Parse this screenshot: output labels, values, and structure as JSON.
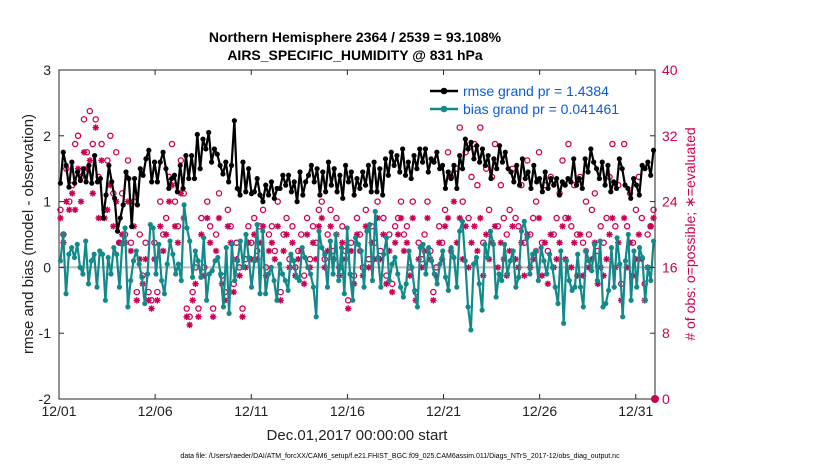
{
  "chart_data": {
    "type": "line",
    "title": "Northern Hemisphere 2364 / 2539 = 93.108%",
    "subtitle": "AIRS_SPECIFIC_HUMIDITY @ 831 hPa",
    "xlabel": "Dec.01,2017 00:00:00 start",
    "ylabel": "rmse and bias (model - observation)",
    "y2label": "# of obs: o=possible; ∗=evaluated",
    "footnote": "data file: /Users/raeder/DAI/ATM_forcXX/CAM6_setup/f.e21.FHIST_BGC.f09_025.CAM6assim.011/Diags_NTrS_2017-12/obs_diag_output.nc",
    "xlim": [
      0,
      31
    ],
    "ylim": [
      -2,
      3
    ],
    "y2lim": [
      0,
      40
    ],
    "xticks": [
      0,
      5,
      10,
      15,
      20,
      25,
      30
    ],
    "xticklabels": [
      "12/01",
      "12/06",
      "12/11",
      "12/16",
      "12/21",
      "12/26",
      "12/31"
    ],
    "yticks": [
      -2,
      -1,
      0,
      1,
      2,
      3
    ],
    "yticklabels": [
      "-2",
      "-1",
      "0",
      "1",
      "2",
      "3"
    ],
    "y2ticks": [
      0,
      8,
      16,
      24,
      32,
      40
    ],
    "y2ticklabels": [
      "0",
      "8",
      "16",
      "24",
      "32",
      "40"
    ],
    "legend_position": "top-right",
    "colors": {
      "rmse": "#000000",
      "bias": "#138a8a",
      "obs": "#cc0055",
      "zero": "#bbbbbb"
    },
    "series": [
      {
        "name": "rmse grand pr = 1.4384",
        "values": [
          1.28,
          1.75,
          1.55,
          1.22,
          1.6,
          1.28,
          1.45,
          1.32,
          1.5,
          1.3,
          1.55,
          1.28,
          1.7,
          1.3,
          1.35,
          0.75,
          1.1,
          1.55,
          1.3,
          1.05,
          0.55,
          0.75,
          0.95,
          1.45,
          1.35,
          0.62,
          1.35,
          0.95,
          1.5,
          1.4,
          1.65,
          1.78,
          1.3,
          1.6,
          1.3,
          1.6,
          1.75,
          1.5,
          1.2,
          1.35,
          1.4,
          1.15,
          1.55,
          1.2,
          1.7,
          1.35,
          1.7,
          1.35,
          2.02,
          1.5,
          1.95,
          1.8,
          2.05,
          1.6,
          1.8,
          1.72,
          1.55,
          1.42,
          1.6,
          1.3,
          1.55,
          2.23,
          1.2,
          1.1,
          1.6,
          1.15,
          1.5,
          1.12,
          1.15,
          1.35,
          1.1,
          1.0,
          1.25,
          1.1,
          1.3,
          1.05,
          1.2,
          1.2,
          1.4,
          1.25,
          1.4,
          1.15,
          1.3,
          1.0,
          1.45,
          1.1,
          1.3,
          1.4,
          1.55,
          1.3,
          1.5,
          1.1,
          1.45,
          1.15,
          1.6,
          1.25,
          1.5,
          1.15,
          1.4,
          1.05,
          1.55,
          1.3,
          1.45,
          1.1,
          1.35,
          1.2,
          1.45,
          1.25,
          1.55,
          1.15,
          1.6,
          1.15,
          1.5,
          1.1,
          1.65,
          1.4,
          1.75,
          1.55,
          1.7,
          1.45,
          1.8,
          1.4,
          1.6,
          1.35,
          1.7,
          1.5,
          1.8,
          1.6,
          1.8,
          1.45,
          1.65,
          1.6,
          1.75,
          1.5,
          1.55,
          1.2,
          1.45,
          1.35,
          1.55,
          1.2,
          1.7,
          1.5,
          1.95,
          1.8,
          1.9,
          1.65,
          1.85,
          1.6,
          1.8,
          1.55,
          1.7,
          1.35,
          1.65,
          1.5,
          1.85,
          1.6,
          1.75,
          1.5,
          1.45,
          1.3,
          1.55,
          1.25,
          1.65,
          1.35,
          1.45,
          1.2,
          1.55,
          1.3,
          1.35,
          1.15,
          1.45,
          1.2,
          1.35,
          1.25,
          1.35,
          1.1,
          1.3,
          1.25,
          1.35,
          1.3,
          1.65,
          1.25,
          1.35,
          1.2,
          1.65,
          1.45,
          1.8,
          1.6,
          1.5,
          1.35,
          1.6,
          1.25,
          1.55,
          1.15,
          1.3,
          1.2,
          1.65,
          1.5,
          1.25,
          1.2,
          1.05,
          1.35,
          1.25,
          1.1,
          1.55,
          1.5,
          1.6,
          1.4,
          1.78
        ]
      },
      {
        "name": "bias grand pr = 0.041461",
        "values": [
          0.1,
          0.5,
          -0.4,
          0.2,
          0.3,
          0.15,
          0.35,
          0.0,
          -0.1,
          0.4,
          -0.25,
          0.1,
          0.2,
          -0.3,
          0.25,
          0.2,
          -0.5,
          0.15,
          -0.1,
          0.3,
          0.2,
          -0.3,
          0.35,
          0.6,
          -0.6,
          -0.2,
          0.1,
          0.25,
          0.05,
          -0.15,
          -0.55,
          -0.1,
          0.65,
          0.6,
          -0.1,
          0.35,
          -0.2,
          -0.4,
          0.05,
          0.4,
          0.2,
          -0.1,
          0.05,
          -0.2,
          0.95,
          0.6,
          0.4,
          -0.15,
          0.25,
          0.1,
          -0.15,
          0.45,
          -0.5,
          -0.1,
          -0.05,
          0.1,
          0.15,
          -0.1,
          -0.6,
          0.3,
          -0.7,
          0.35,
          -0.2,
          0.1,
          0.4,
          0.0,
          0.5,
          0.15,
          -0.3,
          0.1,
          0.65,
          -0.4,
          0.55,
          -0.4,
          -0.1,
          0.0,
          -0.2,
          -0.5,
          0.05,
          -0.1,
          -0.2,
          -0.35,
          0.2,
          0.1,
          -0.15,
          -0.2,
          0.3,
          0.15,
          0.0,
          -0.1,
          -0.3,
          -0.75,
          0.55,
          0.3,
          0.2,
          -0.3,
          0.4,
          -0.1,
          0.5,
          -0.2,
          0.3,
          -0.4,
          0.6,
          -0.1,
          -0.5,
          0.45,
          0.35,
          0.25,
          -0.3,
          0.55,
          0.65,
          -0.2,
          0.85,
          0.15,
          -0.3,
          0.2,
          0.45,
          -0.2,
          0.05,
          0.15,
          -0.1,
          -0.3,
          -0.45,
          -0.25,
          0.25,
          0.0,
          -0.35,
          -0.6,
          0.3,
          0.35,
          -0.1,
          0.3,
          0.1,
          -0.1,
          -0.25,
          0.05,
          0.25,
          -0.15,
          -0.35,
          0.3,
          0.15,
          -0.3,
          0.55,
          0.7,
          0.1,
          -0.6,
          -0.95,
          0.05,
          0.15,
          -0.25,
          -0.65,
          0.35,
          0.15,
          0.55,
          0.35,
          -0.45,
          -0.1,
          -0.2,
          0.35,
          -0.1,
          0.1,
          0.25,
          -0.3,
          -0.15,
          0.55,
          0.7,
          0.45,
          -0.1,
          0.2,
          0.25,
          -0.2,
          0.3,
          0.1,
          -0.1,
          0.2,
          0.0,
          -0.3,
          -0.55,
          0.25,
          -0.85,
          0.1,
          -0.2,
          -0.35,
          -0.3,
          0.2,
          -0.3,
          -0.6,
          0.25,
          0.1,
          -0.05,
          0.35,
          -0.2,
          0.4,
          -0.6,
          -0.55,
          -0.35,
          0.3,
          -0.3,
          0.45,
          0.05,
          -0.75,
          0.1,
          0.5,
          -0.5,
          0.25,
          -0.3,
          0.3,
          0.15,
          -0.5,
          0.0,
          -0.2,
          0.4
        ]
      },
      {
        "name": "possible",
        "values": [
          23,
          20,
          28,
          24,
          26,
          31,
          32,
          27,
          34,
          30,
          35,
          31,
          34,
          27,
          31,
          23,
          29,
          32,
          25,
          30,
          19,
          25,
          20,
          29,
          19,
          24,
          13,
          20,
          15,
          19,
          13,
          12,
          19,
          13,
          24,
          20,
          22,
          27,
          31,
          24,
          21,
          29,
          25,
          11,
          10,
          13,
          16,
          11,
          22,
          16,
          24,
          21,
          11,
          20,
          25,
          15,
          13,
          23,
          21,
          14,
          19,
          16,
          11,
          17,
          21,
          19,
          22,
          18,
          21,
          23,
          16,
          20,
          21,
          18,
          24,
          13,
          20,
          22,
          17,
          21,
          16,
          18,
          20,
          15,
          22,
          17,
          21,
          19,
          23,
          24,
          17,
          20,
          23,
          18,
          22,
          16,
          21,
          18,
          12,
          19,
          15,
          22,
          20,
          16,
          23,
          17,
          21,
          19,
          24,
          18,
          22,
          15,
          20,
          14,
          21,
          22,
          24,
          20,
          21,
          16,
          24,
          13,
          19,
          17,
          20,
          24,
          18,
          13,
          16,
          21,
          19,
          23,
          30,
          27,
          35,
          28,
          33,
          24,
          30,
          22,
          27,
          31,
          26,
          33,
          19,
          28,
          23,
          27,
          31,
          21,
          26,
          22,
          20,
          23,
          28,
          22,
          21,
          26,
          19,
          29,
          20,
          22,
          24,
          30,
          19,
          26,
          18,
          27,
          20,
          22,
          25,
          29,
          22,
          31,
          21,
          26,
          20,
          27,
          19,
          24,
          20,
          23,
          25,
          18,
          21,
          19,
          22,
          27,
          31,
          21,
          26,
          14,
          31,
          21,
          25,
          19,
          23,
          27,
          22,
          14,
          20,
          21,
          23
        ]
      },
      {
        "name": "evaluated",
        "values": [
          22,
          19,
          24,
          23,
          25,
          23,
          28,
          24,
          30,
          28,
          29,
          25,
          33,
          22,
          29,
          22,
          23,
          26,
          21,
          24,
          19,
          20,
          19,
          24,
          18,
          21,
          12,
          17,
          14,
          17,
          12,
          11,
          17,
          12,
          21,
          18,
          20,
          24,
          26,
          21,
          19,
          25,
          22,
          10,
          9,
          12,
          14,
          10,
          20,
          15,
          22,
          19,
          10,
          18,
          22,
          14,
          12,
          21,
          19,
          13,
          17,
          15,
          10,
          16,
          19,
          17,
          20,
          17,
          19,
          21,
          15,
          18,
          19,
          17,
          21,
          12,
          18,
          20,
          16,
          19,
          15,
          17,
          18,
          14,
          20,
          16,
          19,
          17,
          21,
          22,
          16,
          18,
          21,
          17,
          20,
          15,
          19,
          17,
          11,
          18,
          14,
          20,
          18,
          15,
          21,
          16,
          19,
          17,
          22,
          17,
          20,
          14,
          18,
          13,
          19,
          20,
          22,
          18,
          19,
          15,
          22,
          12,
          17,
          16,
          18,
          22,
          17,
          12,
          15,
          19,
          17,
          21,
          22,
          18,
          24,
          19,
          22,
          17,
          21,
          16,
          19,
          21,
          18,
          22,
          15,
          20,
          17,
          19,
          21,
          16,
          19,
          17,
          15,
          18,
          21,
          17,
          16,
          19,
          15,
          20,
          16,
          17,
          18,
          22,
          15,
          19,
          14,
          20,
          16,
          17,
          19,
          21,
          17,
          22,
          16,
          19,
          15,
          20,
          15,
          18,
          16,
          17,
          19,
          14,
          16,
          15,
          17,
          20,
          22,
          16,
          19,
          12,
          22,
          16,
          19,
          15,
          17,
          20,
          17,
          12,
          16,
          21,
          22
        ]
      }
    ]
  }
}
